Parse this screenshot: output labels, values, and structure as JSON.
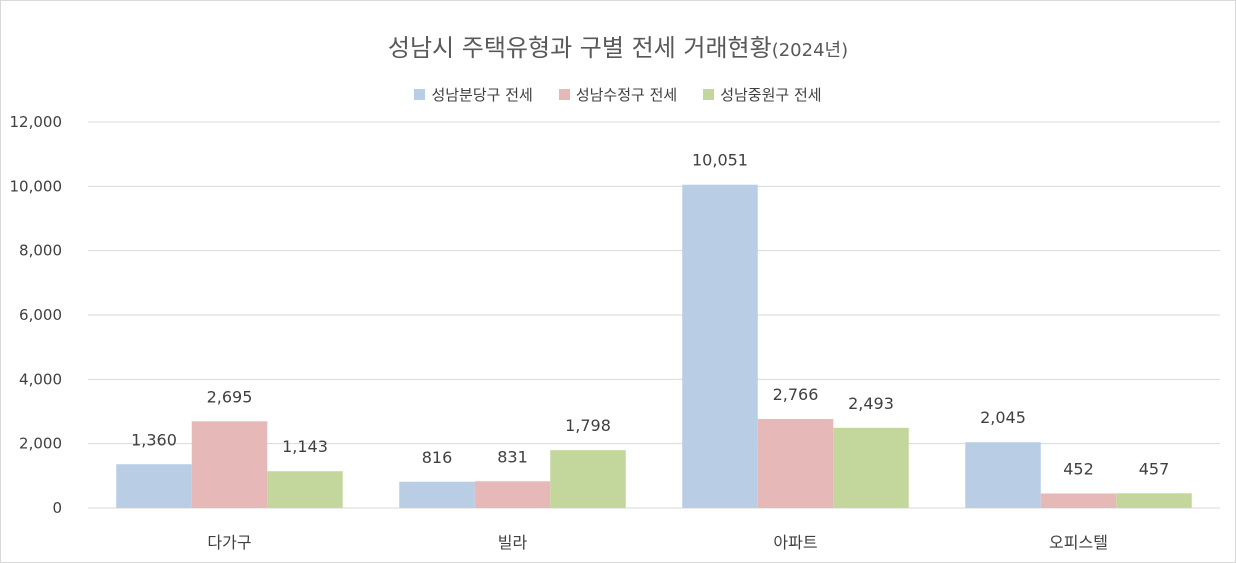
{
  "chart_data": {
    "type": "bar",
    "title": "성남시 주택유형과 구별 전세 거래현황",
    "title_suffix": "(2024년)",
    "categories": [
      "다가구",
      "빌라",
      "아파트",
      "오피스텔"
    ],
    "series": [
      {
        "name": "성남분당구 전세",
        "color": "#b9cde5",
        "values": [
          1360,
          816,
          10051,
          2045
        ]
      },
      {
        "name": "성남수정구 전세",
        "color": "#e6b9b8",
        "values": [
          2695,
          831,
          2766,
          452
        ]
      },
      {
        "name": "성남중원구 전세",
        "color": "#c3d69b",
        "values": [
          1143,
          1798,
          2493,
          457
        ]
      }
    ],
    "ylim": [
      0,
      12000
    ],
    "yticks": [
      0,
      2000,
      4000,
      6000,
      8000,
      10000,
      12000
    ],
    "ytick_labels": [
      "0",
      "2,000",
      "4,000",
      "6,000",
      "8,000",
      "10,000",
      "12,000"
    ],
    "data_labels": [
      [
        "1,360",
        "816",
        "10,051",
        "2,045"
      ],
      [
        "2,695",
        "831",
        "2,766",
        "452"
      ],
      [
        "1,143",
        "1,798",
        "2,493",
        "457"
      ]
    ],
    "grid": true,
    "legend_position": "top",
    "gridline_color": "#d9d9d9"
  }
}
